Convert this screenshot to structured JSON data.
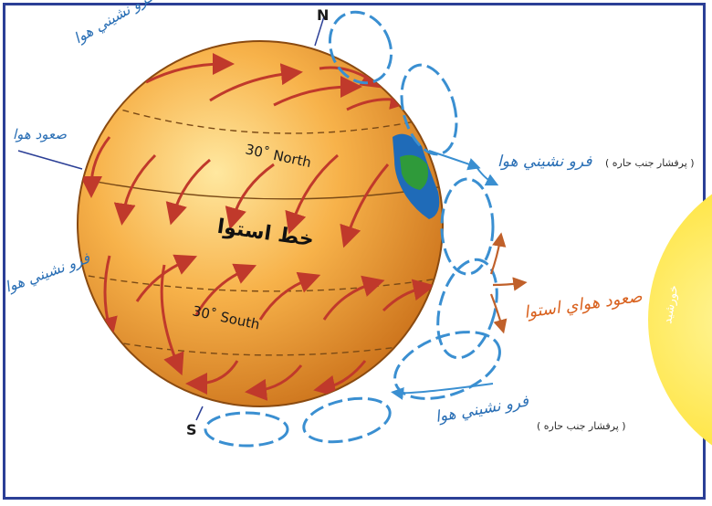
{
  "labels": {
    "north_pole": "N",
    "south_pole": "S",
    "lat_north": "30˚ North",
    "lat_south": "30˚ South",
    "equator": "خط استوا",
    "descend_top_left": "فرو نشيني هوا",
    "ascend_left": "صعود هوا",
    "descend_left_mid": "فرو نشيني هوا",
    "descend_right_top": "فرو نشيني هوا",
    "high_pressure_top": "( پرفشار جنب حاره )",
    "equator_rise": "صعود هواي استوا",
    "descend_right_bottom": "فرو نشيني هوا",
    "high_pressure_bottom": "( پرفشار جنب حاره )",
    "sun_label": "خورشيد"
  },
  "colors": {
    "frame": "#2b3f96",
    "globe_light": "#ffe08a",
    "globe_mid": "#f6a93b",
    "globe_dark": "#c8701a",
    "wind_arrow": "#c0392b",
    "cell_blue": "#3a8fd1",
    "cell_fill": "#ffffff",
    "rise_arrow": "#c0602a",
    "sun": "#ffe633",
    "handwriting_blue": "#2a6fb5",
    "handwriting_orange": "#d9621f"
  }
}
